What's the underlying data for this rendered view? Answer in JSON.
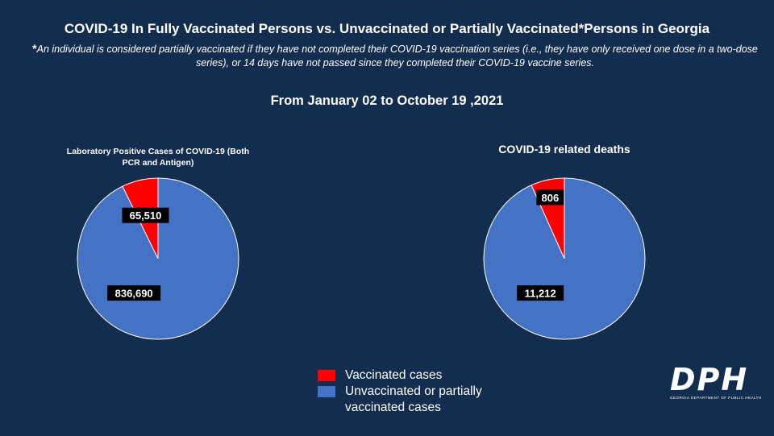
{
  "header": {
    "title": "COVID-19 In Fully Vaccinated Persons vs. Unvaccinated or Partially Vaccinated*Persons in Georgia",
    "note_star": "*",
    "note": "An individual is considered partially vaccinated if they have not completed their COVID-19 vaccination series (i.e., they have only received one dose in a two-dose series), or 14 days have not passed since they completed their COVID-19 vaccine series.",
    "date_range": "From January 02 to October 19 ,2021"
  },
  "colors": {
    "background": "#132d4e",
    "vaccinated": "#ff0000",
    "unvaccinated": "#4472c4"
  },
  "legend": {
    "items": [
      {
        "label": "Vaccinated cases",
        "color": "#ff0000"
      },
      {
        "label": "Unvaccinated or partially vaccinated cases",
        "color": "#4472c4"
      }
    ]
  },
  "logo": {
    "mark": "DPH",
    "subtitle": "GEORGIA DEPARTMENT OF PUBLIC HEALTH"
  },
  "chart_data": [
    {
      "type": "pie",
      "title": "Laboratory Positive Cases of COVID-19 (Both PCR and Antigen)",
      "labels": [
        "Vaccinated cases",
        "Unvaccinated or partially vaccinated cases"
      ],
      "values": [
        65510,
        836690
      ],
      "value_labels": [
        "65,510",
        "836,690"
      ],
      "colors": [
        "#ff0000",
        "#4472c4"
      ]
    },
    {
      "type": "pie",
      "title": "COVID-19 related deaths",
      "labels": [
        "Vaccinated cases",
        "Unvaccinated or partially vaccinated cases"
      ],
      "values": [
        806,
        11212
      ],
      "value_labels": [
        "806",
        "11,212"
      ],
      "colors": [
        "#ff0000",
        "#4472c4"
      ]
    }
  ]
}
